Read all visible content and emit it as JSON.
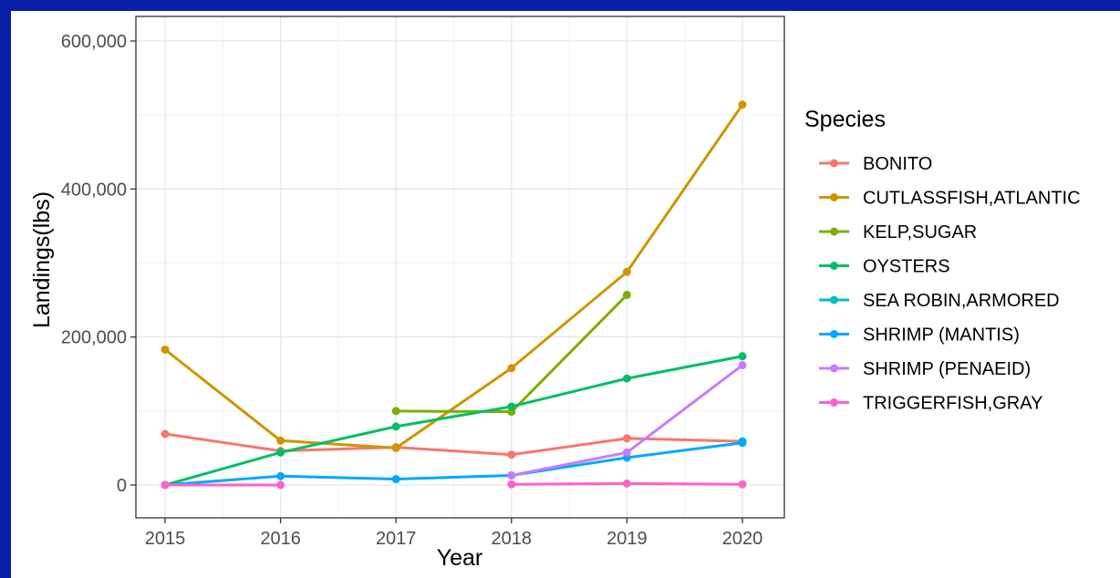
{
  "chart_data": {
    "type": "line",
    "xlabel": "Year",
    "ylabel": "Landings(lbs)",
    "legend_title": "Species",
    "legend_position": "right",
    "grid": true,
    "xlim": [
      2015,
      2020
    ],
    "ylim": [
      0,
      600000
    ],
    "x_ticks": [
      2015,
      2016,
      2017,
      2018,
      2019,
      2020
    ],
    "x_tick_labels": [
      "2015",
      "2016",
      "2017",
      "2018",
      "2019",
      "2020"
    ],
    "y_ticks": [
      0,
      200000,
      400000,
      600000
    ],
    "y_tick_labels": [
      "0",
      "200,000",
      "400,000",
      "600,000"
    ],
    "series": [
      {
        "name": "BONITO",
        "color": "#F8766D",
        "points": [
          [
            2015,
            69000
          ],
          [
            2016,
            46000
          ],
          [
            2017,
            51000
          ],
          [
            2018,
            41000
          ],
          [
            2019,
            63000
          ],
          [
            2020,
            59000
          ]
        ]
      },
      {
        "name": "CUTLASSFISH,ATLANTIC",
        "color": "#CD9600",
        "points": [
          [
            2015,
            183000
          ],
          [
            2016,
            60000
          ],
          [
            2017,
            50000
          ],
          [
            2018,
            158000
          ],
          [
            2019,
            288000
          ],
          [
            2020,
            514000
          ]
        ]
      },
      {
        "name": "KELP,SUGAR",
        "color": "#7CAE00",
        "points": [
          [
            2017,
            100000
          ],
          [
            2018,
            99000
          ],
          [
            2019,
            257000
          ]
        ]
      },
      {
        "name": "OYSTERS",
        "color": "#00BE67",
        "points": [
          [
            2015,
            0
          ],
          [
            2016,
            44000
          ],
          [
            2017,
            79000
          ],
          [
            2018,
            106000
          ],
          [
            2019,
            144000
          ],
          [
            2020,
            174000
          ]
        ]
      },
      {
        "name": "SEA ROBIN,ARMORED",
        "color": "#00BFC4",
        "points": [
          [
            2020,
            59000
          ]
        ]
      },
      {
        "name": "SHRIMP (MANTIS)",
        "color": "#00A9FF",
        "points": [
          [
            2015,
            0
          ],
          [
            2016,
            12000
          ],
          [
            2017,
            8000
          ],
          [
            2018,
            13000
          ],
          [
            2019,
            37000
          ],
          [
            2020,
            57000
          ]
        ]
      },
      {
        "name": "SHRIMP (PENAEID)",
        "color": "#C77CFF",
        "points": [
          [
            2018,
            13000
          ],
          [
            2019,
            44000
          ],
          [
            2020,
            162000
          ]
        ]
      },
      {
        "name": "TRIGGERFISH,GRAY",
        "color": "#FF61CC",
        "points": [
          [
            2015,
            0
          ],
          [
            2016,
            0
          ],
          [
            2018,
            1000
          ],
          [
            2019,
            2000
          ],
          [
            2020,
            1000
          ]
        ]
      }
    ]
  }
}
